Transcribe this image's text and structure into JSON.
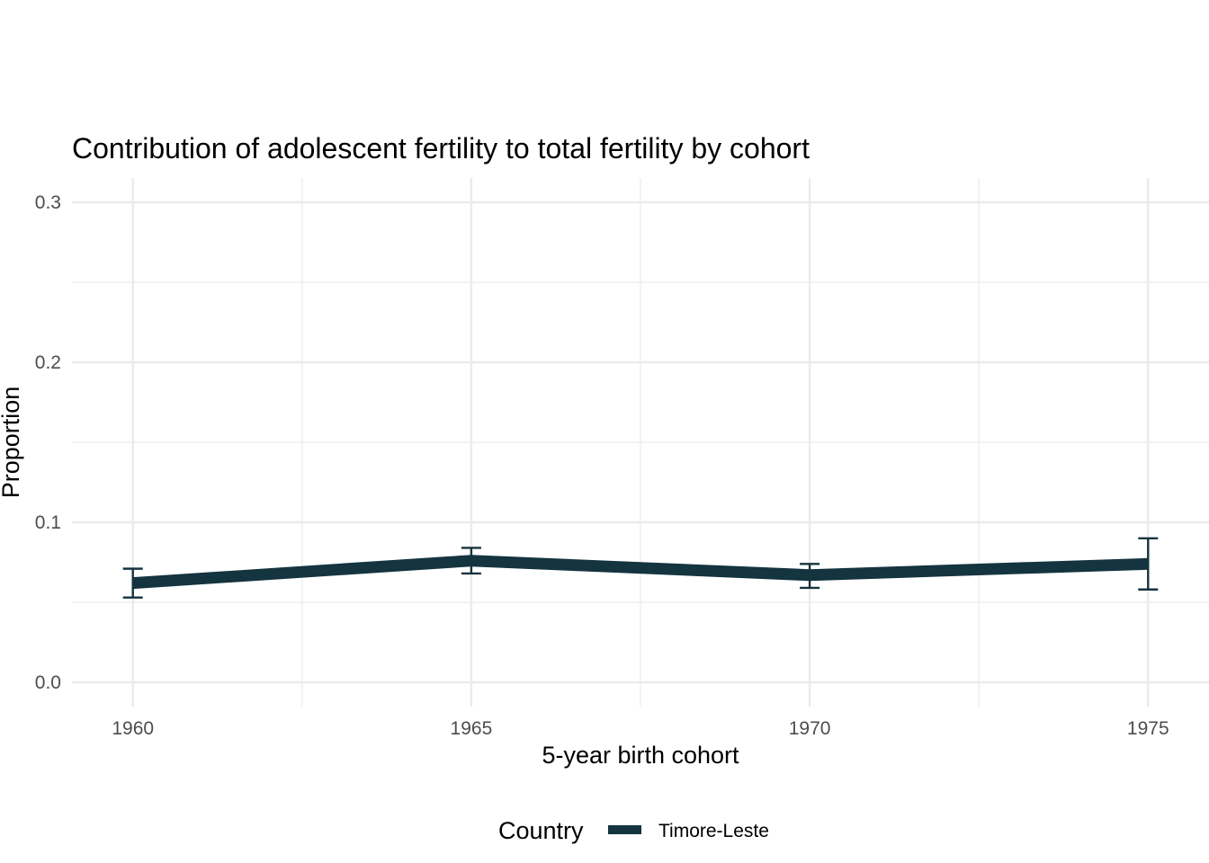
{
  "chart_data": {
    "type": "line",
    "title": "Contribution of adolescent fertility to total fertility by cohort",
    "xlabel": "5-year birth cohort",
    "ylabel": "Proportion",
    "x": [
      1960,
      1965,
      1970,
      1975
    ],
    "x_ticks": [
      "1960",
      "1965",
      "1970",
      "1975"
    ],
    "y_ticks": [
      "0.0",
      "0.1",
      "0.2",
      "0.3"
    ],
    "xlim": [
      1959.1,
      1975.9
    ],
    "ylim": [
      0,
      0.3
    ],
    "grid": true,
    "legend": {
      "title": "Country",
      "placement": "bottom"
    },
    "series": [
      {
        "name": "Timore-Leste",
        "color": "#14343f",
        "values": [
          0.062,
          0.076,
          0.067,
          0.074
        ],
        "error_low": [
          0.053,
          0.068,
          0.059,
          0.058
        ],
        "error_high": [
          0.071,
          0.084,
          0.074,
          0.09
        ]
      }
    ]
  }
}
